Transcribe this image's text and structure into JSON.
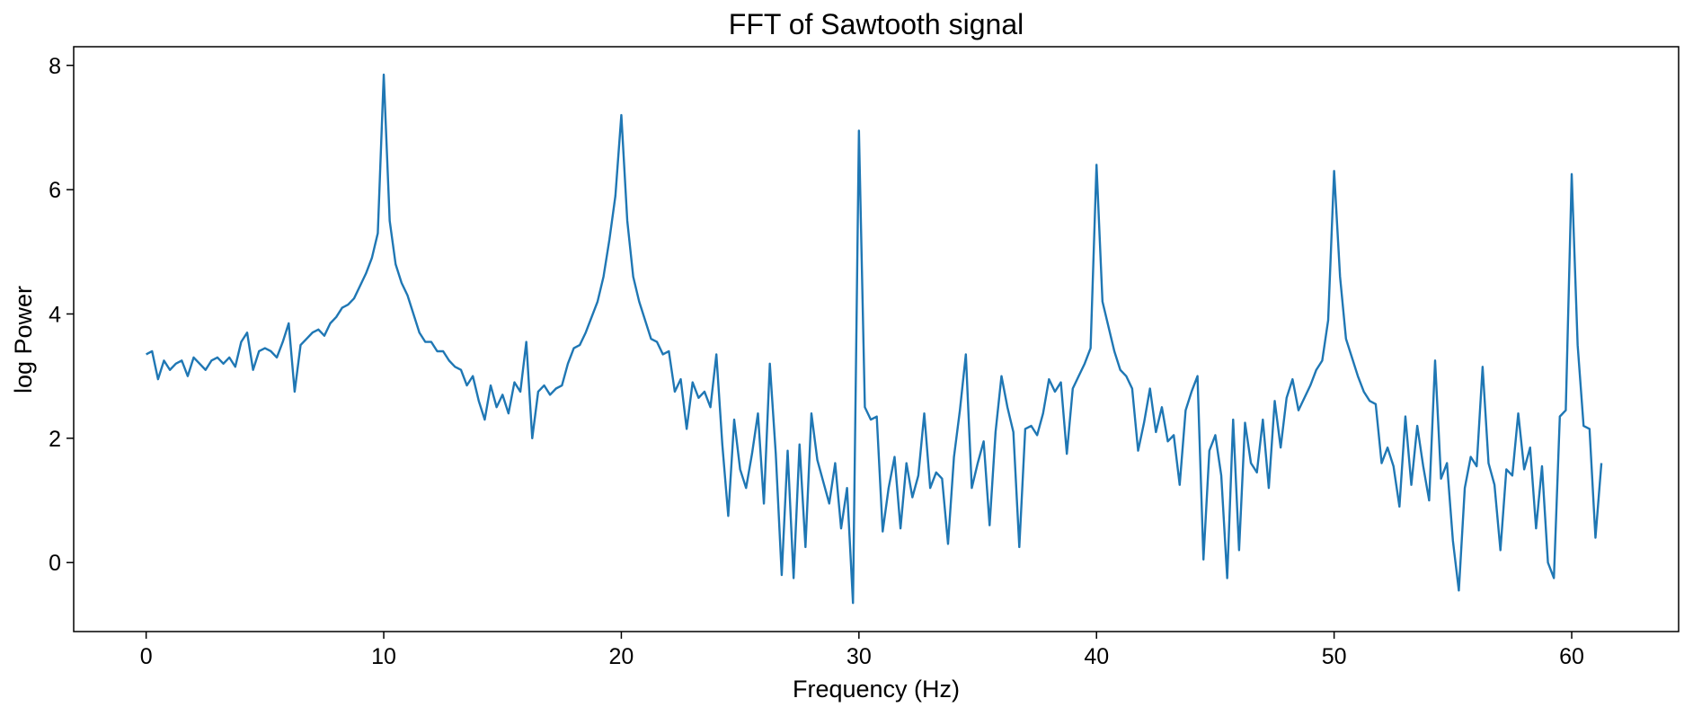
{
  "chart_data": {
    "type": "line",
    "title": "FFT of Sawtooth signal",
    "x_label": "Frequency (Hz)",
    "y_label": "log Power",
    "xlim": [
      -3.05,
      64.5
    ],
    "ylim": [
      -1.11,
      8.3
    ],
    "xticks": [
      0,
      10,
      20,
      30,
      40,
      50,
      60
    ],
    "yticks": [
      0,
      2,
      4,
      6,
      8
    ],
    "grid": false,
    "x": [
      0,
      0.25,
      0.5,
      0.75,
      1,
      1.25,
      1.5,
      1.75,
      2,
      2.25,
      2.5,
      2.75,
      3,
      3.25,
      3.5,
      3.75,
      4,
      4.25,
      4.5,
      4.75,
      5,
      5.25,
      5.5,
      5.75,
      6,
      6.25,
      6.5,
      6.75,
      7,
      7.25,
      7.5,
      7.75,
      8,
      8.25,
      8.5,
      8.75,
      9,
      9.25,
      9.5,
      9.75,
      10,
      10.25,
      10.5,
      10.75,
      11,
      11.25,
      11.5,
      11.75,
      12,
      12.25,
      12.5,
      12.75,
      13,
      13.25,
      13.5,
      13.75,
      14,
      14.25,
      14.5,
      14.75,
      15,
      15.25,
      15.5,
      15.75,
      16,
      16.25,
      16.5,
      16.75,
      17,
      17.25,
      17.5,
      17.75,
      18,
      18.25,
      18.5,
      18.75,
      19,
      19.25,
      19.5,
      19.75,
      20,
      20.25,
      20.5,
      20.75,
      21,
      21.25,
      21.5,
      21.75,
      22,
      22.25,
      22.5,
      22.75,
      23,
      23.25,
      23.5,
      23.75,
      24,
      24.25,
      24.5,
      24.75,
      25,
      25.25,
      25.5,
      25.75,
      26,
      26.25,
      26.5,
      26.75,
      27,
      27.25,
      27.5,
      27.75,
      28,
      28.25,
      28.5,
      28.75,
      29,
      29.25,
      29.5,
      29.75,
      30,
      30.25,
      30.5,
      30.75,
      31,
      31.25,
      31.5,
      31.75,
      32,
      32.25,
      32.5,
      32.75,
      33,
      33.25,
      33.5,
      33.75,
      34,
      34.25,
      34.5,
      34.75,
      35,
      35.25,
      35.5,
      35.75,
      36,
      36.25,
      36.5,
      36.75,
      37,
      37.25,
      37.5,
      37.75,
      38,
      38.25,
      38.5,
      38.75,
      39,
      39.25,
      39.5,
      39.75,
      40,
      40.25,
      40.5,
      40.75,
      41,
      41.25,
      41.5,
      41.75,
      42,
      42.25,
      42.5,
      42.75,
      43,
      43.25,
      43.5,
      43.75,
      44,
      44.25,
      44.5,
      44.75,
      45,
      45.25,
      45.5,
      45.75,
      46,
      46.25,
      46.5,
      46.75,
      47,
      47.25,
      47.5,
      47.75,
      48,
      48.25,
      48.5,
      48.75,
      49,
      49.25,
      49.5,
      49.75,
      50,
      50.25,
      50.5,
      50.75,
      51,
      51.25,
      51.5,
      51.75,
      52,
      52.25,
      52.5,
      52.75,
      53,
      53.25,
      53.5,
      53.75,
      54,
      54.25,
      54.5,
      54.75,
      55,
      55.25,
      55.5,
      55.75,
      56,
      56.25,
      56.5,
      56.75,
      57,
      57.25,
      57.5,
      57.75,
      58,
      58.25,
      58.5,
      58.75,
      59,
      59.25,
      59.5,
      59.75,
      60,
      60.25,
      60.5,
      60.75,
      61,
      61.25
    ],
    "series": [
      {
        "color": "#1f77b4",
        "values": [
          3.35,
          3.4,
          2.95,
          3.25,
          3.1,
          3.2,
          3.25,
          3.0,
          3.3,
          3.2,
          3.1,
          3.25,
          3.3,
          3.2,
          3.3,
          3.15,
          3.55,
          3.7,
          3.1,
          3.4,
          3.45,
          3.4,
          3.3,
          3.55,
          3.85,
          2.75,
          3.5,
          3.6,
          3.7,
          3.75,
          3.65,
          3.85,
          3.95,
          4.1,
          4.15,
          4.25,
          4.45,
          4.65,
          4.9,
          5.3,
          7.85,
          5.5,
          4.8,
          4.5,
          4.3,
          4.0,
          3.7,
          3.55,
          3.55,
          3.4,
          3.4,
          3.25,
          3.15,
          3.1,
          2.85,
          3.0,
          2.6,
          2.3,
          2.85,
          2.5,
          2.7,
          2.4,
          2.9,
          2.75,
          3.55,
          2.0,
          2.75,
          2.85,
          2.7,
          2.8,
          2.85,
          3.2,
          3.45,
          3.5,
          3.7,
          3.95,
          4.2,
          4.6,
          5.2,
          5.9,
          7.2,
          5.5,
          4.6,
          4.2,
          3.9,
          3.6,
          3.55,
          3.35,
          3.4,
          2.75,
          2.95,
          2.15,
          2.9,
          2.65,
          2.75,
          2.5,
          3.35,
          1.9,
          0.75,
          2.3,
          1.5,
          1.2,
          1.75,
          2.4,
          0.95,
          3.2,
          1.75,
          -0.2,
          1.8,
          -0.25,
          1.9,
          0.25,
          2.4,
          1.65,
          1.3,
          0.95,
          1.6,
          0.55,
          1.2,
          -0.65,
          6.95,
          2.5,
          2.3,
          2.35,
          0.5,
          1.2,
          1.7,
          0.55,
          1.6,
          1.05,
          1.4,
          2.4,
          1.2,
          1.45,
          1.35,
          0.3,
          1.7,
          2.45,
          3.35,
          1.2,
          1.6,
          1.95,
          0.6,
          2.1,
          3.0,
          2.5,
          2.1,
          0.25,
          2.15,
          2.2,
          2.05,
          2.4,
          2.95,
          2.75,
          2.9,
          1.75,
          2.8,
          3.0,
          3.2,
          3.45,
          6.4,
          4.2,
          3.8,
          3.4,
          3.1,
          3.0,
          2.8,
          1.8,
          2.25,
          2.8,
          2.1,
          2.5,
          1.95,
          2.05,
          1.25,
          2.45,
          2.75,
          3.0,
          0.05,
          1.8,
          2.05,
          1.4,
          -0.25,
          2.3,
          0.2,
          2.25,
          1.6,
          1.45,
          2.3,
          1.2,
          2.6,
          1.85,
          2.65,
          2.95,
          2.45,
          2.65,
          2.85,
          3.1,
          3.25,
          3.9,
          6.3,
          4.6,
          3.6,
          3.3,
          3.0,
          2.75,
          2.6,
          2.55,
          1.6,
          1.85,
          1.55,
          0.9,
          2.35,
          1.25,
          2.2,
          1.55,
          1.0,
          3.25,
          1.35,
          1.6,
          0.35,
          -0.45,
          1.2,
          1.7,
          1.55,
          3.15,
          1.6,
          1.25,
          0.2,
          1.5,
          1.4,
          2.4,
          1.5,
          1.85,
          0.55,
          1.55,
          0.0,
          -0.25,
          2.35,
          2.45,
          6.25,
          3.5,
          2.2,
          2.15,
          0.4,
          1.6
        ]
      }
    ]
  }
}
